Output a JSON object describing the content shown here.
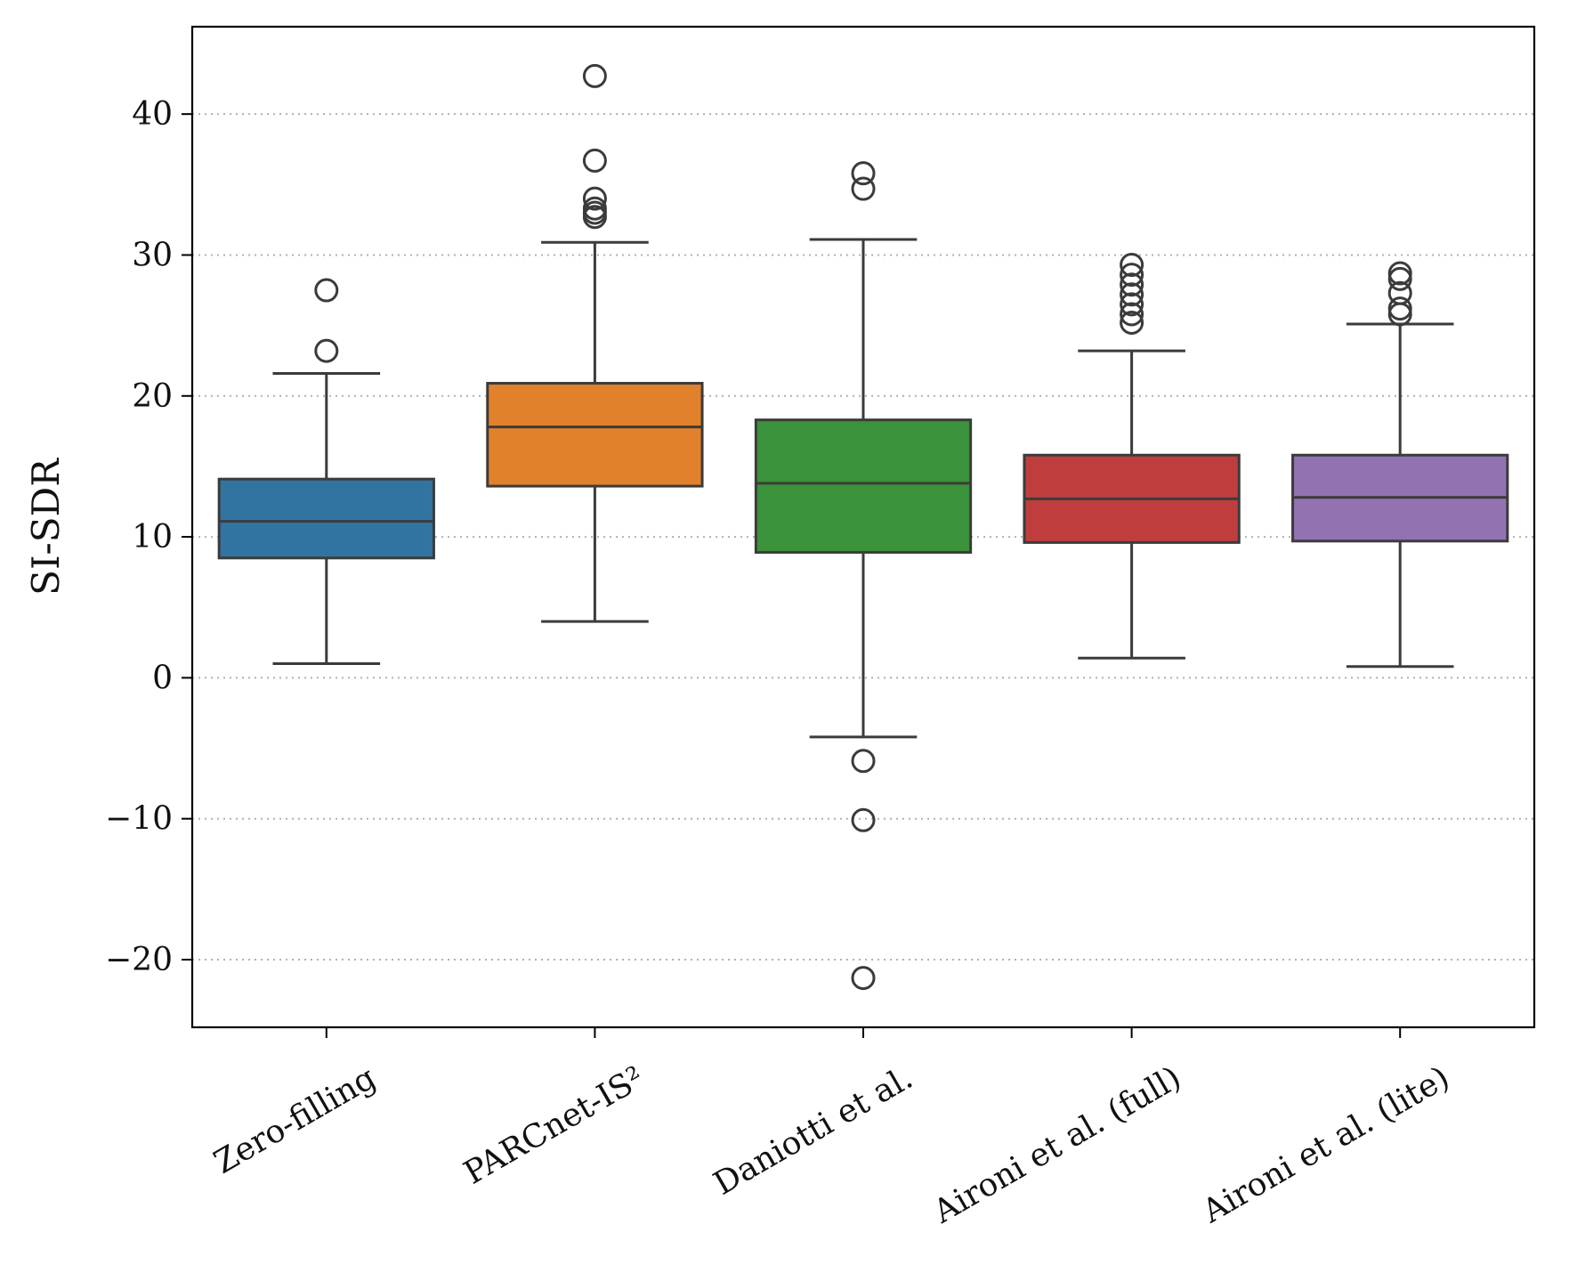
{
  "chart_data": {
    "type": "boxplot",
    "title": "",
    "xlabel": "",
    "ylabel": "SI-SDR",
    "ylim": [
      -24.8,
      46.2
    ],
    "yticks": [
      -20,
      -10,
      0,
      10,
      20,
      30,
      40
    ],
    "ytick_labels": [
      "−20",
      "−10",
      "0",
      "10",
      "20",
      "30",
      "40"
    ],
    "grid": "y-dotted",
    "categories": [
      "Zero-filling",
      "PARCnet-IS²",
      "Daniotti et al.",
      "Aironi et al. (full)",
      "Aironi et al. (lite)"
    ],
    "series": [
      {
        "name": "Zero-filling",
        "color": "#3274a1",
        "whisker_low": 1.0,
        "q1": 8.5,
        "median": 11.1,
        "q3": 14.1,
        "whisker_high": 21.6,
        "outliers": [
          23.2,
          27.5
        ]
      },
      {
        "name": "PARCnet-IS²",
        "color": "#e1812c",
        "whisker_low": 4.0,
        "q1": 13.6,
        "median": 17.8,
        "q3": 20.9,
        "whisker_high": 30.9,
        "outliers": [
          32.7,
          33.0,
          33.3,
          34.0,
          36.7,
          42.7
        ]
      },
      {
        "name": "Daniotti et al.",
        "color": "#3a923a",
        "whisker_low": -4.2,
        "q1": 8.9,
        "median": 13.8,
        "q3": 18.3,
        "whisker_high": 31.1,
        "outliers": [
          -21.3,
          -10.1,
          -5.9,
          34.7,
          35.8
        ]
      },
      {
        "name": "Aironi et al. (full)",
        "color": "#c03d3e",
        "whisker_low": 1.4,
        "q1": 9.6,
        "median": 12.7,
        "q3": 15.8,
        "whisker_high": 23.2,
        "outliers": [
          25.2,
          25.8,
          26.5,
          27.2,
          27.9,
          28.6,
          29.3
        ]
      },
      {
        "name": "Aironi et al. (lite)",
        "color": "#9372b2",
        "whisker_low": 0.8,
        "q1": 9.7,
        "median": 12.8,
        "q3": 15.8,
        "whisker_high": 25.1,
        "outliers": [
          25.8,
          26.2,
          27.3,
          28.3,
          28.7
        ]
      }
    ]
  }
}
